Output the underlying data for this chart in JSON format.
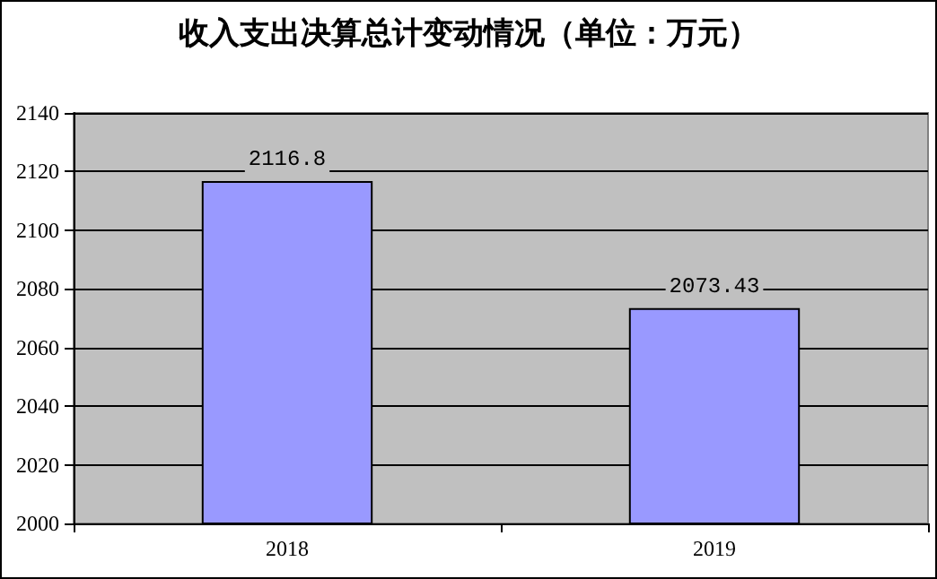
{
  "chart_data": {
    "type": "bar",
    "title": "收入支出决算总计变动情况（单位：万元）",
    "categories": [
      "2018",
      "2019"
    ],
    "values": [
      2116.8,
      2073.43
    ],
    "color": "#9999ff",
    "ylim": [
      2000,
      2140
    ],
    "yticks": [
      2000,
      2020,
      2040,
      2060,
      2080,
      2100,
      2120,
      2140
    ],
    "grid": "y",
    "data_labels": true
  }
}
